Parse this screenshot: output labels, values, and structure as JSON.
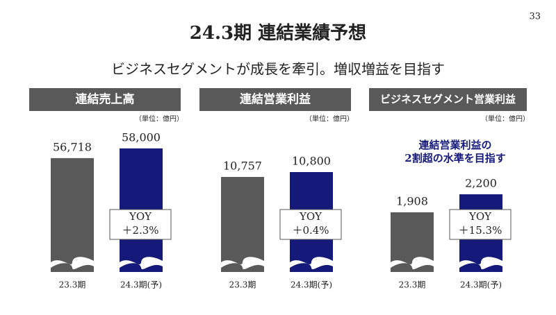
{
  "page_number": "33",
  "title": "24.3期 連結業績予想",
  "subtitle": "ビジネスセグメントが成長を牽引。増収増益を目指す",
  "chart_data": [
    {
      "type": "bar",
      "title": "連結売上高",
      "unit": "（単位：億円）",
      "categories": [
        "23.3期",
        "24.3期(予)"
      ],
      "values": [
        56718,
        58000
      ],
      "value_labels": [
        "56,718",
        "58,000"
      ],
      "colors": [
        "#595959",
        "#15197a"
      ],
      "ylim": [
        41700,
        61100
      ],
      "annotation_lines": [
        "YOY",
        "＋2.3%"
      ]
    },
    {
      "type": "bar",
      "title": "連結営業利益",
      "unit": "（単位：億円）",
      "categories": [
        "23.3期",
        "24.3期(予)"
      ],
      "values": [
        10757,
        10800
      ],
      "value_labels": [
        "10,757",
        "10,800"
      ],
      "colors": [
        "#595959",
        "#15197a"
      ],
      "ylim": [
        9917,
        11217
      ],
      "annotation_lines": [
        "YOY",
        "＋0.4%"
      ]
    },
    {
      "type": "bar",
      "title": "ビジネスセグメント営業利益",
      "unit": "（単位：億円）",
      "categories": [
        "23.3期",
        "24.3期(予)"
      ],
      "values": [
        1908,
        2200
      ],
      "value_labels": [
        "1,908",
        "2,200"
      ],
      "colors": [
        "#595959",
        "#15197a"
      ],
      "ylim": [
        942,
        3324
      ],
      "annotation_lines": [
        "YOY",
        "＋15.3%"
      ],
      "note_lines": [
        "連結営業利益の",
        "2割超の水準を目指す"
      ]
    }
  ]
}
